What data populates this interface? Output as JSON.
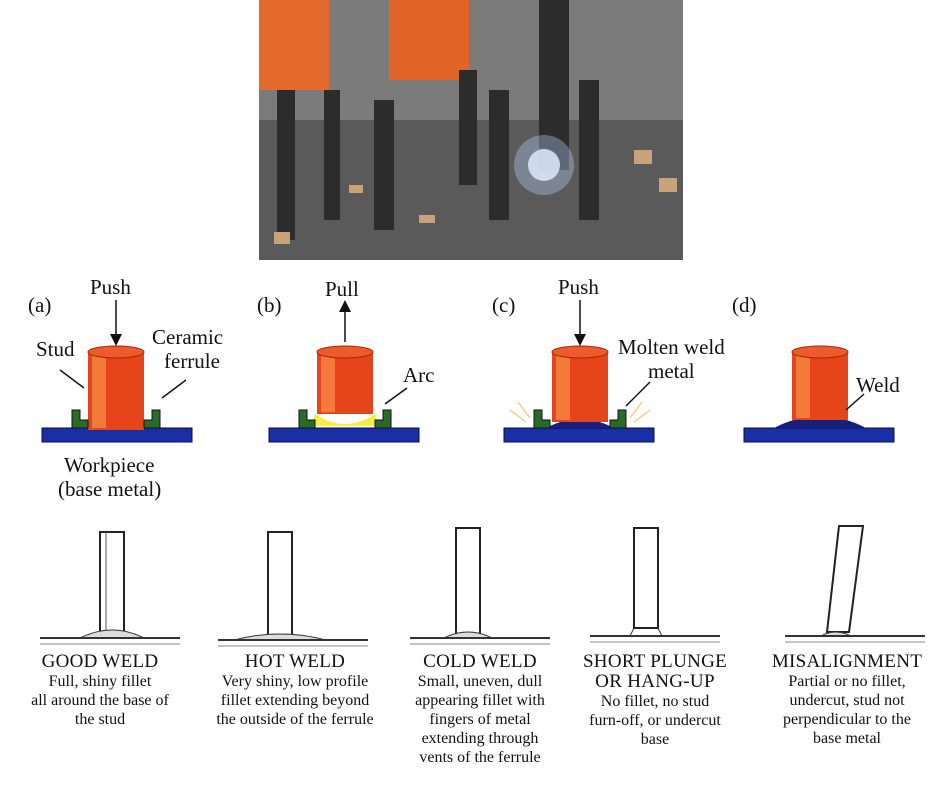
{
  "colors": {
    "stud": "#e6441a",
    "stud_highlight": "#f47a3b",
    "workpiece": "#1a2fa6",
    "ferrule": "#2a6b2a",
    "molten": "#16207a",
    "arc": "#f4ef42",
    "photo_bg": "#6f6f6f"
  },
  "photo": {
    "icon": "stud-welding-photo"
  },
  "panels": [
    {
      "tag": "(a)",
      "force": "Push",
      "labels": [
        "Stud",
        "Ceramic",
        "ferrule",
        "Workpiece",
        "(base metal)"
      ]
    },
    {
      "tag": "(b)",
      "force": "Pull",
      "labels": [
        "Arc"
      ]
    },
    {
      "tag": "(c)",
      "force": "Push",
      "labels": [
        "Molten weld",
        "metal"
      ]
    },
    {
      "tag": "(d)",
      "force": "",
      "labels": [
        "Weld"
      ]
    }
  ],
  "outcomes": [
    {
      "title": [
        "GOOD WELD"
      ],
      "desc": [
        "Full, shiny fillet",
        "all around the base of",
        "the stud"
      ]
    },
    {
      "title": [
        "HOT WELD"
      ],
      "desc": [
        "Very shiny, low profile",
        "fillet extending beyond",
        "the outside of the ferrule"
      ]
    },
    {
      "title": [
        "COLD WELD"
      ],
      "desc": [
        "Small, uneven, dull",
        "appearing fillet with",
        "fingers of metal",
        "extending through",
        "vents of the ferrule"
      ]
    },
    {
      "title": [
        "SHORT PLUNGE",
        "OR HANG-UP"
      ],
      "desc": [
        "No fillet, no stud",
        "furn-off, or undercut",
        "base"
      ]
    },
    {
      "title": [
        "MISALIGNMENT"
      ],
      "desc": [
        "Partial or no fillet,",
        "undercut, stud not",
        "perpendicular to the",
        "base metal"
      ]
    }
  ]
}
